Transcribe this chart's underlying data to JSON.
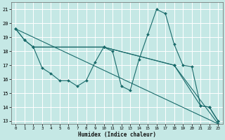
{
  "xlabel": "Humidex (Indice chaleur)",
  "xlim": [
    -0.5,
    23.5
  ],
  "ylim": [
    12.8,
    21.5
  ],
  "yticks": [
    13,
    14,
    15,
    16,
    17,
    18,
    19,
    20,
    21
  ],
  "xticks": [
    0,
    1,
    2,
    3,
    4,
    5,
    6,
    7,
    8,
    9,
    10,
    11,
    12,
    13,
    14,
    15,
    16,
    17,
    18,
    19,
    20,
    21,
    22,
    23
  ],
  "bg_color": "#c5e8e5",
  "grid_color": "#ffffff",
  "line_color": "#1a6b6b",
  "line1_x": [
    0,
    1,
    2,
    3,
    4,
    5,
    6,
    7,
    8,
    9,
    10,
    11,
    12,
    13,
    14,
    15,
    16,
    17,
    18,
    19,
    20,
    21,
    22,
    23
  ],
  "line1_y": [
    19.6,
    18.8,
    18.3,
    16.8,
    16.4,
    15.9,
    15.9,
    15.5,
    15.9,
    17.2,
    18.3,
    18.0,
    15.5,
    15.2,
    17.4,
    19.2,
    21.0,
    20.7,
    18.5,
    17.0,
    16.9,
    14.1,
    14.0,
    13.0
  ],
  "line2_x": [
    0,
    1,
    2,
    10,
    18,
    23
  ],
  "line2_y": [
    19.6,
    18.8,
    18.3,
    18.3,
    17.0,
    12.8
  ],
  "line3_x": [
    2,
    10,
    18,
    21,
    22,
    23
  ],
  "line3_y": [
    18.3,
    18.3,
    17.0,
    14.1,
    14.0,
    13.0
  ],
  "line4_x": [
    0,
    23
  ],
  "line4_y": [
    19.6,
    12.8
  ]
}
